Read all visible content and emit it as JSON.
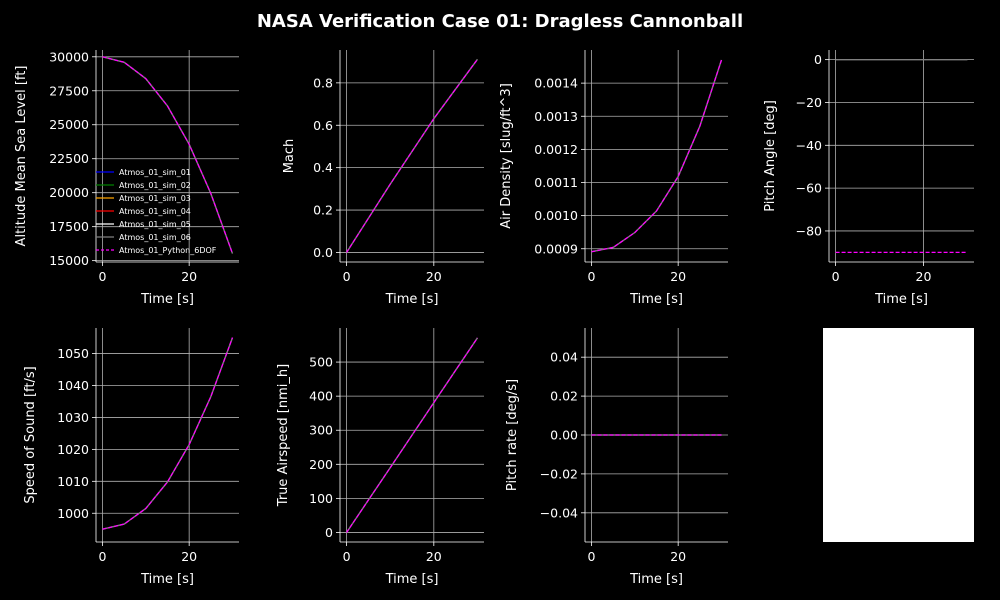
{
  "figure": {
    "title": "NASA Verification Case 01: Dragless Cannonball",
    "colors": {
      "background": "#000000",
      "axis": "#ffffff",
      "grid": "#b0b0b0",
      "sim_01": "#0000ff",
      "sim_02": "#008000",
      "sim_03": "#ffa500",
      "sim_04": "#ff0000",
      "sim_05": "#ffffff",
      "sim_06": "#808080",
      "python_6dof": "#ff00ff"
    }
  },
  "chart_data": [
    {
      "id": "altitude",
      "type": "line",
      "xlabel": "Time [s]",
      "ylabel": "Altitude Mean Sea Level [ft]",
      "xlim": [
        -1.5,
        31.5
      ],
      "ylim": [
        14900,
        30500
      ],
      "xticks": [
        0,
        20
      ],
      "yticks": [
        15000,
        17500,
        20000,
        22500,
        25000,
        27500,
        30000
      ],
      "grid": true,
      "legend": {
        "placement": "lower-left",
        "entries": [
          "Atmos_01_sim_01",
          "Atmos_01_sim_02",
          "Atmos_01_sim_03",
          "Atmos_01_sim_04",
          "Atmos_01_sim_05",
          "Atmos_01_sim_06",
          "Atmos_01_Python_6DOF"
        ],
        "colors": [
          "#0000ff",
          "#008000",
          "#ffa500",
          "#ff0000",
          "#ffffff",
          "#808080",
          "#ff00ff"
        ],
        "styles": [
          "solid",
          "solid",
          "solid",
          "solid",
          "solid",
          "solid",
          "dashed"
        ]
      },
      "series": [
        {
          "name": "Atmos_01_sim_01",
          "values": [
            [
              0,
              30000
            ],
            [
              5,
              29598
            ],
            [
              10,
              28390
            ],
            [
              15,
              26380
            ],
            [
              20,
              23560
            ],
            [
              25,
              19940
            ],
            [
              30,
              15520
            ]
          ]
        },
        {
          "name": "Atmos_01_Python_6DOF",
          "values": [
            [
              0,
              30000
            ],
            [
              5,
              29598
            ],
            [
              10,
              28390
            ],
            [
              15,
              26380
            ],
            [
              20,
              23560
            ],
            [
              25,
              19940
            ],
            [
              30,
              15520
            ]
          ]
        }
      ]
    },
    {
      "id": "mach",
      "type": "line",
      "xlabel": "Time [s]",
      "ylabel": "Mach",
      "xlim": [
        -1.5,
        31.5
      ],
      "ylim": [
        -0.045,
        0.955
      ],
      "xticks": [
        0,
        20
      ],
      "yticks": [
        0.0,
        0.2,
        0.4,
        0.6,
        0.8
      ],
      "ytick_labels": [
        "0.0",
        "0.2",
        "0.4",
        "0.6",
        "0.8"
      ],
      "grid": true,
      "series": [
        {
          "name": "Atmos_01_sim_01",
          "values": [
            [
              0,
              0
            ],
            [
              10,
              0.322
            ],
            [
              20,
              0.631
            ],
            [
              30,
              0.911
            ]
          ]
        },
        {
          "name": "Atmos_01_Python_6DOF",
          "values": [
            [
              0,
              0
            ],
            [
              10,
              0.322
            ],
            [
              20,
              0.631
            ],
            [
              30,
              0.911
            ]
          ]
        }
      ]
    },
    {
      "id": "density",
      "type": "line",
      "xlabel": "Time [s]",
      "ylabel": "Air Density [slug/ft^3]",
      "xlim": [
        -1.5,
        31.5
      ],
      "ylim": [
        0.00086,
        0.0015
      ],
      "xticks": [
        0,
        20
      ],
      "yticks": [
        0.0009,
        0.001,
        0.0011,
        0.0012,
        0.0013,
        0.0014
      ],
      "ytick_labels": [
        "0.0009",
        "0.0010",
        "0.0011",
        "0.0012",
        "0.0013",
        "0.0014"
      ],
      "grid": true,
      "series": [
        {
          "name": "Atmos_01_sim_01",
          "values": [
            [
              0,
              0.000891
            ],
            [
              5,
              0.000904
            ],
            [
              10,
              0.000949
            ],
            [
              15,
              0.001014
            ],
            [
              20,
              0.001118
            ],
            [
              25,
              0.00127
            ],
            [
              30,
              0.00147
            ]
          ]
        },
        {
          "name": "Atmos_01_Python_6DOF",
          "values": [
            [
              0,
              0.000891
            ],
            [
              5,
              0.000904
            ],
            [
              10,
              0.000949
            ],
            [
              15,
              0.001014
            ],
            [
              20,
              0.001118
            ],
            [
              25,
              0.00127
            ],
            [
              30,
              0.00147
            ]
          ]
        }
      ]
    },
    {
      "id": "pitch_angle",
      "type": "line",
      "xlabel": "Time [s]",
      "ylabel": "Pitch Angle [deg]",
      "xlim": [
        -1.5,
        31.5
      ],
      "ylim": [
        -94.5,
        4.5
      ],
      "xticks": [
        0,
        20
      ],
      "yticks": [
        0,
        -20,
        -40,
        -60,
        -80
      ],
      "ytick_labels": [
        "0",
        "−20",
        "−40",
        "−60",
        "−80"
      ],
      "grid": true,
      "series": [
        {
          "name": "Atmos_01_sim_01",
          "values": [
            [
              0,
              0
            ],
            [
              30,
              0
            ]
          ]
        },
        {
          "name": "Atmos_01_Python_6DOF",
          "values": [
            [
              0,
              -90
            ],
            [
              30,
              -90
            ]
          ]
        }
      ]
    },
    {
      "id": "speed_of_sound",
      "type": "line",
      "xlabel": "Time [s]",
      "ylabel": "Speed of Sound [ft/s]",
      "xlim": [
        -1.5,
        31.5
      ],
      "ylim": [
        991,
        1058
      ],
      "xticks": [
        0,
        20
      ],
      "yticks": [
        1000,
        1010,
        1020,
        1030,
        1040,
        1050
      ],
      "grid": true,
      "series": [
        {
          "name": "Atmos_01_sim_01",
          "values": [
            [
              0,
              995
            ],
            [
              5,
              996.6
            ],
            [
              10,
              1001.5
            ],
            [
              15,
              1009.8
            ],
            [
              20,
              1021.5
            ],
            [
              25,
              1036.5
            ],
            [
              30,
              1055
            ]
          ]
        },
        {
          "name": "Atmos_01_Python_6DOF",
          "values": [
            [
              0,
              995
            ],
            [
              5,
              996.6
            ],
            [
              10,
              1001.5
            ],
            [
              15,
              1009.8
            ],
            [
              20,
              1021.5
            ],
            [
              25,
              1036.5
            ],
            [
              30,
              1055
            ]
          ]
        }
      ]
    },
    {
      "id": "true_airspeed",
      "type": "line",
      "xlabel": "Time [s]",
      "ylabel": "True Airspeed [nmi_h]",
      "xlim": [
        -1.5,
        31.5
      ],
      "ylim": [
        -28,
        600
      ],
      "xticks": [
        0,
        20
      ],
      "yticks": [
        0,
        100,
        200,
        300,
        400,
        500
      ],
      "grid": true,
      "series": [
        {
          "name": "Atmos_01_sim_01",
          "values": [
            [
              0,
              0
            ],
            [
              10,
              190
            ],
            [
              20,
              381
            ],
            [
              30,
              571
            ]
          ]
        },
        {
          "name": "Atmos_01_Python_6DOF",
          "values": [
            [
              0,
              0
            ],
            [
              10,
              190
            ],
            [
              20,
              381
            ],
            [
              30,
              571
            ]
          ]
        }
      ]
    },
    {
      "id": "pitch_rate",
      "type": "line",
      "xlabel": "Time [s]",
      "ylabel": "Pitch rate [deg/s]",
      "xlim": [
        -1.5,
        31.5
      ],
      "ylim": [
        -0.055,
        0.055
      ],
      "xticks": [
        0,
        20
      ],
      "yticks": [
        -0.04,
        -0.02,
        0.0,
        0.02,
        0.04
      ],
      "ytick_labels": [
        "−0.04",
        "−0.02",
        "0.00",
        "0.02",
        "0.04"
      ],
      "grid": true,
      "series": [
        {
          "name": "Atmos_01_sim_01",
          "values": [
            [
              0,
              0
            ],
            [
              30,
              0
            ]
          ]
        },
        {
          "name": "Atmos_01_Python_6DOF",
          "values": [
            [
              0,
              0
            ],
            [
              30,
              0
            ]
          ]
        }
      ]
    }
  ]
}
